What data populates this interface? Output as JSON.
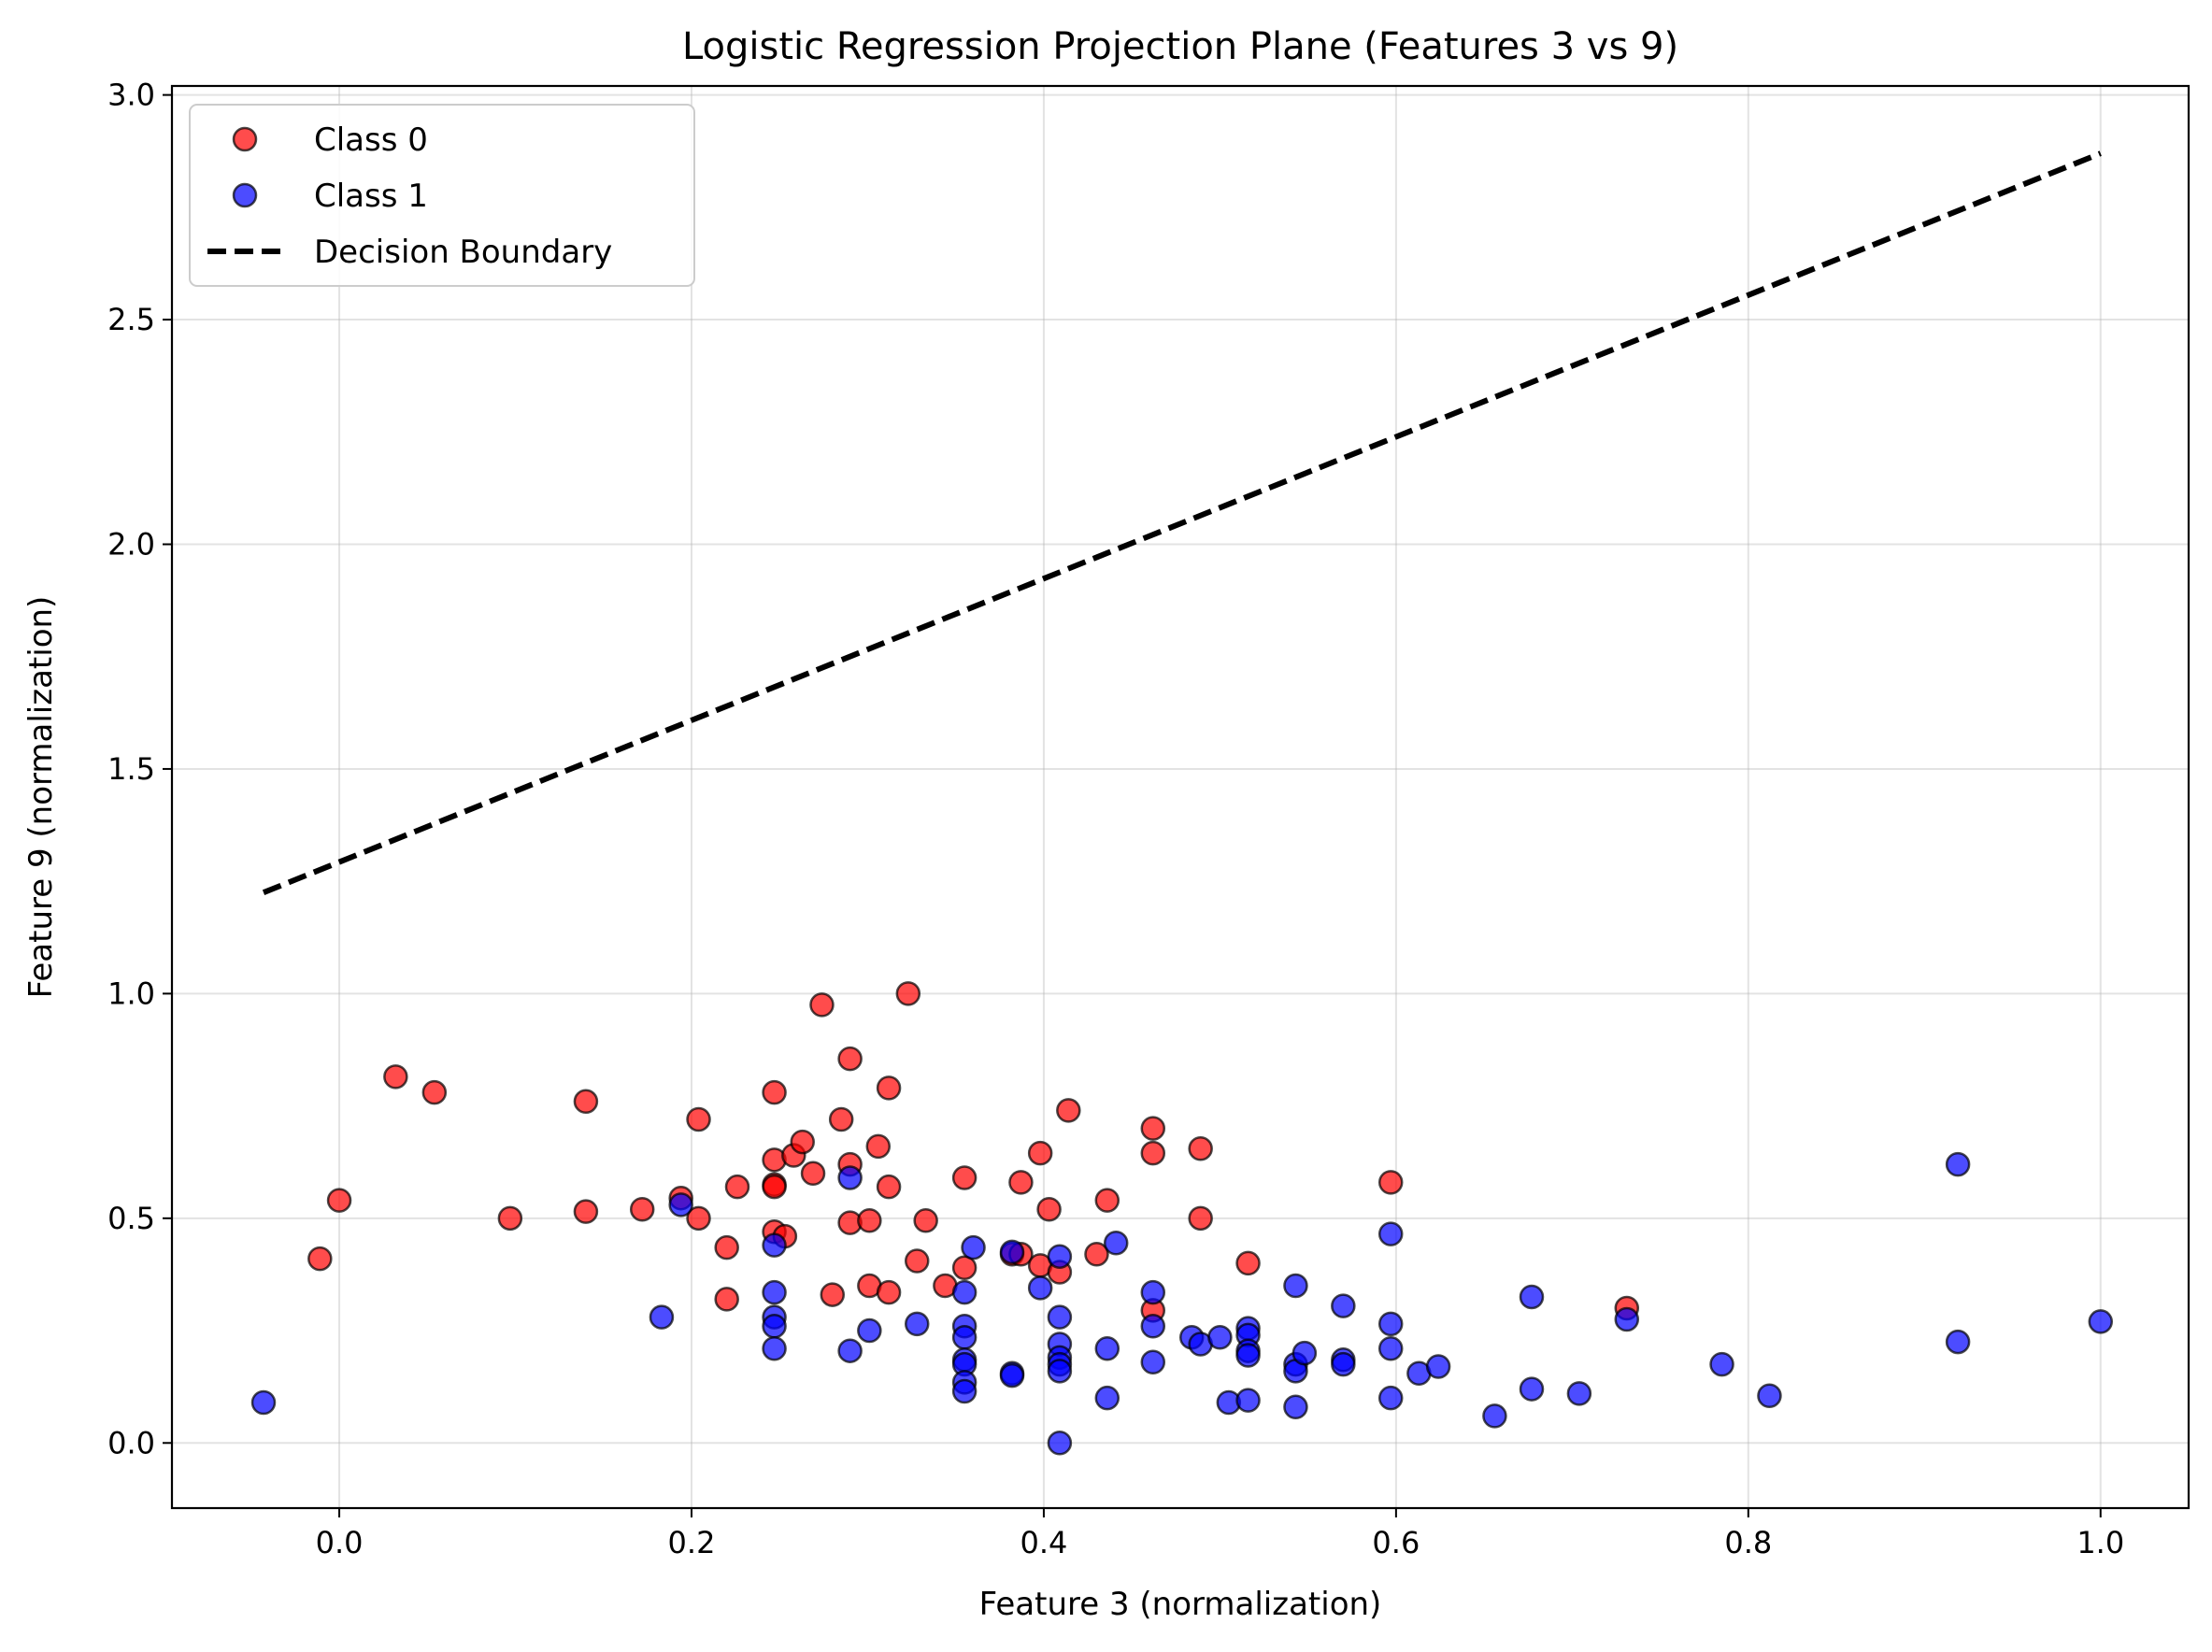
{
  "chart_data": {
    "type": "scatter",
    "title": "Logistic Regression Projection Plane (Features 3 vs 9)",
    "xlabel": "Feature 3 (normalization)",
    "ylabel": "Feature 9 (normalization)",
    "xlim": [
      -0.095,
      1.05
    ],
    "ylim": [
      -0.145,
      3.02
    ],
    "xticks": [
      "0.0",
      "0.2",
      "0.4",
      "0.6",
      "0.8",
      "1.0"
    ],
    "yticks": [
      "0.0",
      "0.5",
      "1.0",
      "1.5",
      "2.0",
      "2.5",
      "3.0"
    ],
    "grid": true,
    "legend_position": "upper-left",
    "colors": {
      "class0": "#ff0000",
      "class1": "#0000ff",
      "boundary": "#000000"
    },
    "series": [
      {
        "name": "Class 0",
        "points": [
          [
            -0.011,
            0.41
          ],
          [
            0.0,
            0.54
          ],
          [
            0.032,
            0.815
          ],
          [
            0.054,
            0.78
          ],
          [
            0.097,
            0.5
          ],
          [
            0.14,
            0.76
          ],
          [
            0.14,
            0.515
          ],
          [
            0.172,
            0.52
          ],
          [
            0.194,
            0.545
          ],
          [
            0.204,
            0.72
          ],
          [
            0.204,
            0.5
          ],
          [
            0.22,
            0.435
          ],
          [
            0.22,
            0.32
          ],
          [
            0.226,
            0.57
          ],
          [
            0.247,
            0.78
          ],
          [
            0.247,
            0.63
          ],
          [
            0.247,
            0.575
          ],
          [
            0.247,
            0.57
          ],
          [
            0.247,
            0.47
          ],
          [
            0.253,
            0.46
          ],
          [
            0.258,
            0.64
          ],
          [
            0.263,
            0.67
          ],
          [
            0.269,
            0.6
          ],
          [
            0.274,
            0.975
          ],
          [
            0.28,
            0.33
          ],
          [
            0.285,
            0.72
          ],
          [
            0.29,
            0.855
          ],
          [
            0.29,
            0.62
          ],
          [
            0.29,
            0.49
          ],
          [
            0.301,
            0.35
          ],
          [
            0.301,
            0.495
          ],
          [
            0.306,
            0.66
          ],
          [
            0.312,
            0.79
          ],
          [
            0.312,
            0.57
          ],
          [
            0.312,
            0.335
          ],
          [
            0.323,
            1.0
          ],
          [
            0.328,
            0.405
          ],
          [
            0.333,
            0.495
          ],
          [
            0.344,
            0.35
          ],
          [
            0.355,
            0.59
          ],
          [
            0.355,
            0.39
          ],
          [
            0.382,
            0.42
          ],
          [
            0.387,
            0.58
          ],
          [
            0.387,
            0.42
          ],
          [
            0.398,
            0.645
          ],
          [
            0.398,
            0.395
          ],
          [
            0.403,
            0.52
          ],
          [
            0.409,
            0.38
          ],
          [
            0.414,
            0.74
          ],
          [
            0.43,
            0.42
          ],
          [
            0.436,
            0.54
          ],
          [
            0.462,
            0.7
          ],
          [
            0.462,
            0.645
          ],
          [
            0.462,
            0.295
          ],
          [
            0.489,
            0.655
          ],
          [
            0.489,
            0.5
          ],
          [
            0.516,
            0.4
          ],
          [
            0.597,
            0.58
          ],
          [
            0.731,
            0.3
          ]
        ]
      },
      {
        "name": "Class 1",
        "points": [
          [
            -0.043,
            0.09
          ],
          [
            0.183,
            0.28
          ],
          [
            0.194,
            0.53
          ],
          [
            0.247,
            0.44
          ],
          [
            0.247,
            0.335
          ],
          [
            0.247,
            0.28
          ],
          [
            0.247,
            0.26
          ],
          [
            0.247,
            0.21
          ],
          [
            0.29,
            0.59
          ],
          [
            0.29,
            0.205
          ],
          [
            0.301,
            0.25
          ],
          [
            0.328,
            0.265
          ],
          [
            0.355,
            0.335
          ],
          [
            0.355,
            0.26
          ],
          [
            0.355,
            0.235
          ],
          [
            0.355,
            0.185
          ],
          [
            0.355,
            0.175
          ],
          [
            0.355,
            0.135
          ],
          [
            0.355,
            0.115
          ],
          [
            0.36,
            0.435
          ],
          [
            0.382,
            0.425
          ],
          [
            0.382,
            0.155
          ],
          [
            0.382,
            0.15
          ],
          [
            0.398,
            0.345
          ],
          [
            0.409,
            0.415
          ],
          [
            0.409,
            0.28
          ],
          [
            0.409,
            0.22
          ],
          [
            0.409,
            0.19
          ],
          [
            0.409,
            0.175
          ],
          [
            0.409,
            0.16
          ],
          [
            0.409,
            0.0
          ],
          [
            0.436,
            0.21
          ],
          [
            0.436,
            0.1
          ],
          [
            0.441,
            0.445
          ],
          [
            0.462,
            0.335
          ],
          [
            0.462,
            0.26
          ],
          [
            0.462,
            0.18
          ],
          [
            0.484,
            0.235
          ],
          [
            0.489,
            0.22
          ],
          [
            0.5,
            0.235
          ],
          [
            0.505,
            0.09
          ],
          [
            0.516,
            0.255
          ],
          [
            0.516,
            0.24
          ],
          [
            0.516,
            0.205
          ],
          [
            0.516,
            0.195
          ],
          [
            0.516,
            0.095
          ],
          [
            0.543,
            0.35
          ],
          [
            0.543,
            0.175
          ],
          [
            0.543,
            0.16
          ],
          [
            0.543,
            0.08
          ],
          [
            0.548,
            0.2
          ],
          [
            0.57,
            0.305
          ],
          [
            0.57,
            0.185
          ],
          [
            0.57,
            0.175
          ],
          [
            0.597,
            0.465
          ],
          [
            0.597,
            0.265
          ],
          [
            0.597,
            0.21
          ],
          [
            0.597,
            0.1
          ],
          [
            0.613,
            0.155
          ],
          [
            0.624,
            0.17
          ],
          [
            0.656,
            0.06
          ],
          [
            0.677,
            0.325
          ],
          [
            0.677,
            0.12
          ],
          [
            0.704,
            0.11
          ],
          [
            0.731,
            0.275
          ],
          [
            0.785,
            0.175
          ],
          [
            0.812,
            0.105
          ],
          [
            0.919,
            0.62
          ],
          [
            0.919,
            0.225
          ],
          [
            1.0,
            0.27
          ]
        ]
      },
      {
        "name": "Decision Boundary",
        "line": [
          [
            -0.043,
            1.225
          ],
          [
            1.0,
            2.87
          ]
        ]
      }
    ]
  }
}
